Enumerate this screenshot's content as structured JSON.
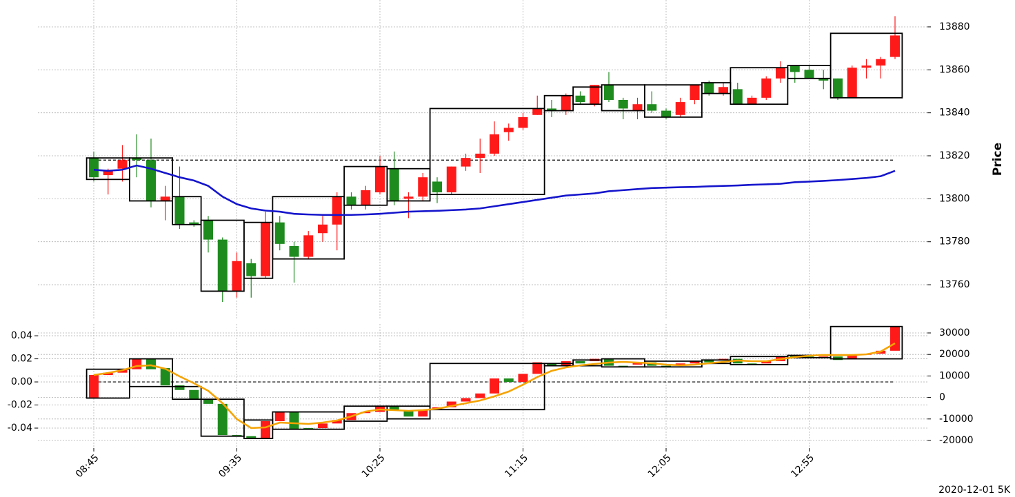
{
  "footer": "2020-12-01 5K",
  "chart_data": [
    {
      "type": "candlestick",
      "ylabel": "Price",
      "ylim": [
        13744.3,
        13892.5
      ],
      "yticks": [
        13760,
        13780,
        13800,
        13820,
        13840,
        13860,
        13880
      ],
      "grid": true,
      "up_color": "#ff1a1a",
      "down_color": "#1e8b1e",
      "open": [
        13819,
        13811,
        13814,
        13819,
        13818,
        13799,
        13801,
        13789,
        13790,
        13781,
        13757,
        13770,
        13764,
        13789,
        13778,
        13773,
        13784,
        13788,
        13801,
        13797,
        13803,
        13814,
        13800,
        13801,
        13808,
        13803,
        13815,
        13819,
        13821,
        13831,
        13833,
        13839,
        13842,
        13841,
        13848,
        13844,
        13853,
        13846,
        13841,
        13844,
        13841,
        13839,
        13846,
        13854,
        13849,
        13851,
        13844,
        13847,
        13856,
        13862,
        13860,
        13856,
        13856,
        13847,
        13861,
        13862,
        13866
      ],
      "high": [
        13822,
        13814,
        13825,
        13830,
        13828,
        13806,
        13815,
        13790,
        13792,
        13782,
        13775,
        13772,
        13794,
        13792,
        13780,
        13785,
        13792,
        13803,
        13803,
        13806,
        13820,
        13822,
        13803,
        13812,
        13810,
        13815,
        13821,
        13828,
        13836,
        13835,
        13840,
        13848,
        13846,
        13849,
        13850,
        13853,
        13859,
        13847,
        13847,
        13850,
        13842,
        13847,
        13853,
        13855,
        13854,
        13854,
        13848,
        13857,
        13864,
        13862,
        13862,
        13860,
        13856,
        13862,
        13865,
        13866,
        13885
      ],
      "low": [
        13808,
        13802,
        13808,
        13810,
        13796,
        13790,
        13786,
        13787,
        13775,
        13752,
        13754,
        13754,
        13763,
        13776,
        13761,
        13772,
        13780,
        13776,
        13795,
        13795,
        13802,
        13797,
        13791,
        13799,
        13798,
        13802,
        13813,
        13812,
        13820,
        13827,
        13832,
        13839,
        13838,
        13839,
        13844,
        13843,
        13845,
        13837,
        13837,
        13840,
        13837,
        13838,
        13844,
        13848,
        13848,
        13844,
        13844,
        13846,
        13854,
        13854,
        13856,
        13851,
        13846,
        13847,
        13856,
        13856,
        13865
      ],
      "close": [
        13810,
        13813,
        13818,
        13818,
        13799,
        13801,
        13788,
        13788,
        13781,
        13757,
        13771,
        13764,
        13789,
        13779,
        13773,
        13783,
        13788,
        13801,
        13797,
        13804,
        13815,
        13799,
        13801,
        13810,
        13803,
        13815,
        13819,
        13821,
        13830,
        13833,
        13838,
        13842,
        13841,
        13848,
        13845,
        13853,
        13846,
        13842,
        13844,
        13841,
        13838,
        13845,
        13853,
        13849,
        13852,
        13844,
        13847,
        13856,
        13861,
        13859,
        13856,
        13855,
        13847,
        13861,
        13862,
        13865,
        13876
      ],
      "line": {
        "color": "#1515cc",
        "values": [
          13813.5,
          13813,
          13813.5,
          13815.5,
          13814,
          13812,
          13810,
          13808.5,
          13806,
          13801,
          13797.5,
          13795.5,
          13794.5,
          13794,
          13793,
          13792.7,
          13792.5,
          13792.5,
          13792.5,
          13792.7,
          13793,
          13793.5,
          13794,
          13794.2,
          13794.4,
          13794.7,
          13795,
          13795.5,
          13796.5,
          13797.5,
          13798.5,
          13799.5,
          13800.5,
          13801.5,
          13802,
          13802.5,
          13803.5,
          13804,
          13804.5,
          13805,
          13805.2,
          13805.4,
          13805.5,
          13805.8,
          13806,
          13806.2,
          13806.5,
          13806.7,
          13807,
          13807.7,
          13808,
          13808.3,
          13808.7,
          13809.2,
          13809.7,
          13810.5,
          13813
        ]
      },
      "hline": 13818,
      "boxes": [
        {
          "start": 0,
          "end": 2,
          "high": 13819,
          "low": 13809
        },
        {
          "start": 3,
          "end": 5,
          "high": 13819,
          "low": 13799
        },
        {
          "start": 6,
          "end": 7,
          "high": 13801,
          "low": 13788
        },
        {
          "start": 8,
          "end": 10,
          "high": 13790,
          "low": 13757
        },
        {
          "start": 11,
          "end": 12,
          "high": 13789,
          "low": 13763
        },
        {
          "start": 13,
          "end": 17,
          "high": 13801,
          "low": 13772
        },
        {
          "start": 18,
          "end": 20,
          "high": 13815,
          "low": 13797
        },
        {
          "start": 21,
          "end": 23,
          "high": 13814,
          "low": 13799
        },
        {
          "start": 24,
          "end": 31,
          "high": 13842,
          "low": 13802
        },
        {
          "start": 32,
          "end": 33,
          "high": 13848,
          "low": 13841
        },
        {
          "start": 34,
          "end": 35,
          "high": 13852,
          "low": 13844
        },
        {
          "start": 36,
          "end": 38,
          "high": 13853,
          "low": 13841
        },
        {
          "start": 39,
          "end": 42,
          "high": 13853,
          "low": 13838
        },
        {
          "start": 43,
          "end": 44,
          "high": 13854,
          "low": 13849
        },
        {
          "start": 45,
          "end": 48,
          "high": 13861,
          "low": 13844
        },
        {
          "start": 49,
          "end": 51,
          "high": 13862,
          "low": 13856
        },
        {
          "start": 52,
          "end": 56,
          "high": 13877,
          "low": 13847
        }
      ]
    },
    {
      "type": "candlestick",
      "categories": [
        "08:45",
        null,
        null,
        null,
        null,
        null,
        null,
        null,
        null,
        null,
        "09:35",
        null,
        null,
        null,
        null,
        null,
        null,
        null,
        null,
        null,
        "10:25",
        null,
        null,
        null,
        null,
        null,
        null,
        null,
        null,
        null,
        "11:15",
        null,
        null,
        null,
        null,
        null,
        null,
        null,
        null,
        null,
        "12:05",
        null,
        null,
        null,
        null,
        null,
        null,
        null,
        null,
        null,
        "12:55",
        null,
        null,
        null,
        null,
        null,
        null
      ],
      "ylim": [
        -0.0573,
        0.0502
      ],
      "yticks": [
        -0.04,
        -0.02,
        {
          "value": 0,
          "label": "0.00"
        },
        0.02,
        0.04
      ],
      "y2lim": [
        -23530,
        34170
      ],
      "y2ticks": [
        -20000,
        -10000,
        0,
        10000,
        20000,
        30000
      ],
      "grid": true,
      "up_color": "#ff1a1a",
      "down_color": "#1e8b1e",
      "open": [
        -0.014,
        0.006,
        0.008,
        0.011,
        0.02,
        0.012,
        -0.003,
        -0.007,
        -0.015,
        -0.019,
        -0.046,
        -0.047,
        -0.049,
        -0.034,
        -0.026,
        -0.04,
        -0.04,
        -0.036,
        -0.033,
        -0.027,
        -0.026,
        -0.021,
        -0.025,
        -0.03,
        -0.024,
        -0.022,
        -0.017,
        -0.014,
        -0.01,
        0.003,
        0.0,
        0.007,
        0.016,
        0.014,
        0.018,
        0.018,
        0.02,
        0.014,
        0.015,
        0.017,
        0.014,
        0.014,
        0.016,
        0.019,
        0.019,
        0.02,
        0.016,
        0.016,
        0.018,
        0.023,
        0.022,
        0.021,
        0.022,
        0.02,
        0.0235,
        0.0245,
        0.027
      ],
      "close": [
        0.006,
        0.008,
        0.011,
        0.02,
        0.011,
        -0.003,
        -0.007,
        -0.015,
        -0.019,
        -0.046,
        -0.047,
        -0.049,
        -0.034,
        -0.026,
        -0.041,
        -0.041,
        -0.036,
        -0.033,
        -0.027,
        -0.026,
        -0.021,
        -0.025,
        -0.03,
        -0.024,
        -0.022,
        -0.017,
        -0.014,
        -0.01,
        0.003,
        0.0,
        0.007,
        0.017,
        0.014,
        0.018,
        0.016,
        0.02,
        0.014,
        0.013,
        0.017,
        0.014,
        0.013,
        0.016,
        0.018,
        0.017,
        0.02,
        0.016,
        0.015,
        0.018,
        0.022,
        0.021,
        0.021,
        0.022,
        0.019,
        0.023,
        0.0245,
        0.027,
        0.048
      ],
      "line": {
        "axis": "y2",
        "color": "#f5a300",
        "values": [
          10450,
          11410,
          12690,
          14620,
          14940,
          13330,
          9810,
          6600,
          3080,
          -2690,
          -10060,
          -14230,
          -13910,
          -11670,
          -11990,
          -12310,
          -11670,
          -10700,
          -8780,
          -6540,
          -5580,
          -5900,
          -6220,
          -5900,
          -5260,
          -3970,
          -2690,
          -1410,
          510,
          2760,
          5960,
          9490,
          12370,
          13980,
          14940,
          15580,
          16220,
          16540,
          16220,
          15900,
          15260,
          14940,
          15260,
          15900,
          16540,
          17180,
          16860,
          16860,
          17820,
          18780,
          19420,
          19740,
          19740,
          19740,
          20060,
          21350,
          25190
        ]
      },
      "hline": 0,
      "boxes": [
        {
          "start": 0,
          "end": 2,
          "high": 0.011,
          "low": -0.014
        },
        {
          "start": 3,
          "end": 5,
          "high": 0.02,
          "low": -0.004
        },
        {
          "start": 6,
          "end": 7,
          "high": -0.004,
          "low": -0.015
        },
        {
          "start": 8,
          "end": 10,
          "high": -0.015,
          "low": -0.047
        },
        {
          "start": 11,
          "end": 12,
          "high": -0.033,
          "low": -0.049
        },
        {
          "start": 13,
          "end": 17,
          "high": -0.026,
          "low": -0.041
        },
        {
          "start": 18,
          "end": 20,
          "high": -0.021,
          "low": -0.034
        },
        {
          "start": 21,
          "end": 23,
          "high": -0.021,
          "low": -0.032
        },
        {
          "start": 24,
          "end": 31,
          "high": 0.016,
          "low": -0.024
        },
        {
          "start": 32,
          "end": 33,
          "high": 0.016,
          "low": 0.014
        },
        {
          "start": 34,
          "end": 35,
          "high": 0.019,
          "low": 0.014
        },
        {
          "start": 36,
          "end": 38,
          "high": 0.02,
          "low": 0.013
        },
        {
          "start": 39,
          "end": 42,
          "high": 0.018,
          "low": 0.013
        },
        {
          "start": 43,
          "end": 44,
          "high": 0.019,
          "low": 0.016
        },
        {
          "start": 45,
          "end": 48,
          "high": 0.022,
          "low": 0.015
        },
        {
          "start": 49,
          "end": 51,
          "high": 0.023,
          "low": 0.021
        },
        {
          "start": 52,
          "end": 56,
          "high": 0.048,
          "low": 0.02
        }
      ]
    }
  ]
}
